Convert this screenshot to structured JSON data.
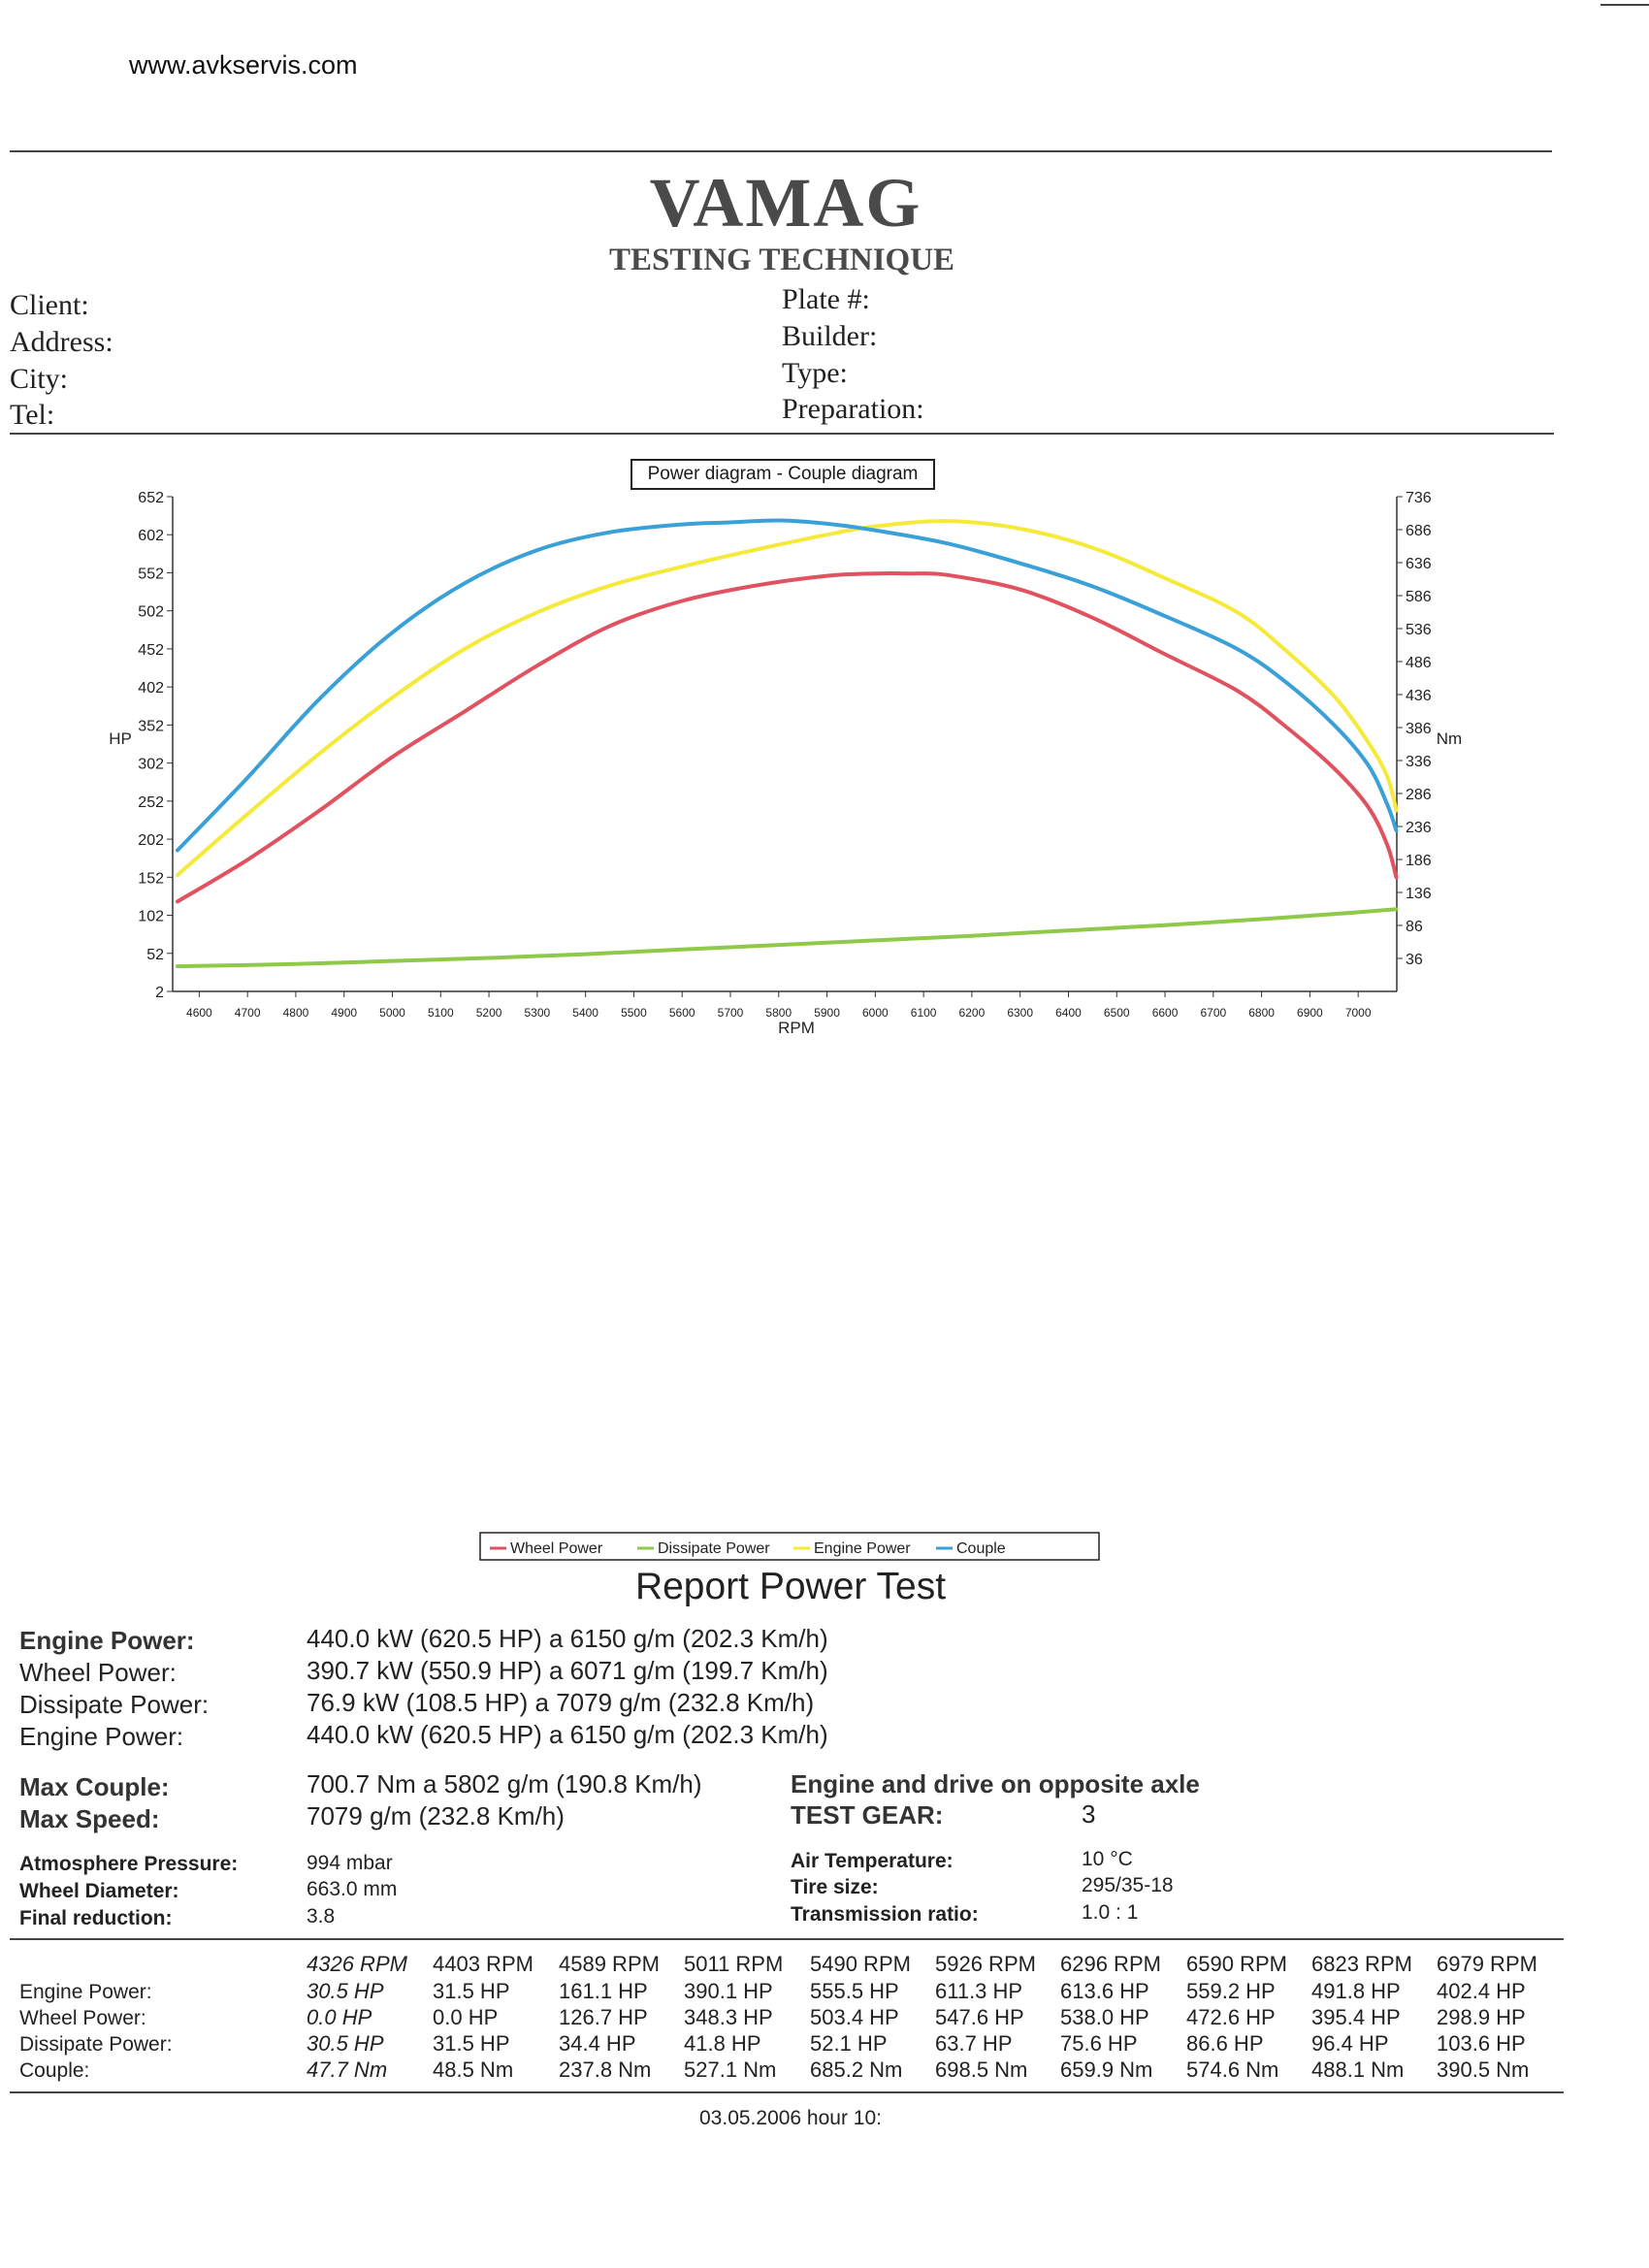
{
  "header": {
    "website": "www.avkservis.com",
    "brand": "VAMAG",
    "brand_subtitle": "TESTING TECHNIQUE"
  },
  "client_fields": {
    "client": "Client:",
    "address": "Address:",
    "city": "City:",
    "tel": "Tel:",
    "plate": "Plate #:",
    "builder": "Builder:",
    "type": "Type:",
    "preparation": "Preparation:"
  },
  "chart_data": {
    "type": "line",
    "title": "Power diagram - Couple diagram",
    "xlabel": "RPM",
    "ylabel_left": "HP",
    "ylabel_right": "Nm",
    "xlim": [
      4545,
      7080
    ],
    "ylim_left": [
      2,
      652
    ],
    "ylim_right": [
      -14,
      736
    ],
    "x_ticks": [
      4600,
      4700,
      4800,
      4900,
      5000,
      5100,
      5200,
      5300,
      5400,
      5500,
      5600,
      5700,
      5800,
      5900,
      6000,
      6100,
      6200,
      6300,
      6400,
      6500,
      6600,
      6700,
      6800,
      6900,
      7000
    ],
    "y_ticks_left": [
      2,
      52,
      102,
      152,
      202,
      252,
      302,
      352,
      402,
      452,
      502,
      552,
      602,
      652
    ],
    "y_ticks_right": [
      36,
      86,
      136,
      186,
      236,
      286,
      336,
      386,
      436,
      486,
      536,
      586,
      636,
      686,
      736
    ],
    "grid": false,
    "legend_position": "bottom",
    "series": [
      {
        "name": "Wheel Power",
        "color": "#e0525f",
        "axis": "left",
        "x": [
          4555,
          4700,
          4850,
          5000,
          5150,
          5300,
          5450,
          5600,
          5750,
          5900,
          6000,
          6071,
          6150,
          6300,
          6450,
          6600,
          6750,
          6850,
          6950,
          7020,
          7060,
          7079
        ],
        "y": [
          120,
          175,
          240,
          310,
          370,
          430,
          482,
          515,
          535,
          548,
          551,
          551,
          549,
          530,
          493,
          445,
          397,
          350,
          295,
          245,
          195,
          152
        ]
      },
      {
        "name": "Dissipate Power",
        "color": "#8fc94a",
        "axis": "left",
        "x": [
          4555,
          4800,
          5000,
          5200,
          5400,
          5600,
          5800,
          6000,
          6200,
          6400,
          6600,
          6800,
          7000,
          7079
        ],
        "y": [
          35,
          38,
          42,
          46,
          51,
          57,
          63,
          69,
          75,
          82,
          89,
          97,
          106,
          110
        ]
      },
      {
        "name": "Engine Power",
        "color": "#f5ea3a",
        "axis": "left",
        "x": [
          4555,
          4700,
          4850,
          5000,
          5150,
          5300,
          5450,
          5600,
          5750,
          5900,
          6000,
          6150,
          6300,
          6450,
          6600,
          6750,
          6850,
          6950,
          7020,
          7060,
          7079
        ],
        "y": [
          155,
          235,
          315,
          388,
          452,
          500,
          535,
          560,
          582,
          602,
          613,
          620,
          610,
          585,
          545,
          500,
          450,
          390,
          330,
          285,
          240
        ]
      },
      {
        "name": "Couple",
        "color": "#3aa0d8",
        "axis": "right",
        "x": [
          4555,
          4700,
          4850,
          5000,
          5150,
          5300,
          5450,
          5600,
          5700,
          5802,
          5900,
          6000,
          6150,
          6300,
          6450,
          6600,
          6750,
          6850,
          6950,
          7020,
          7060,
          7079
        ],
        "y": [
          200,
          310,
          430,
          530,
          605,
          655,
          682,
          694,
          697,
          700,
          695,
          685,
          665,
          635,
          600,
          555,
          505,
          455,
          390,
          330,
          270,
          230
        ]
      }
    ]
  },
  "report": {
    "title": "Report Power Test",
    "summary": [
      {
        "label": "Engine Power:",
        "value": "440.0 kW (620.5 HP) a 6150 g/m (202.3 Km/h)"
      },
      {
        "label": "Wheel Power:",
        "value": "390.7 kW (550.9 HP) a 6071 g/m (199.7 Km/h)"
      },
      {
        "label": "Dissipate Power:",
        "value": "76.9 kW (108.5 HP) a 7079 g/m (232.8 Km/h)"
      },
      {
        "label": "Engine Power:",
        "value": "440.0 kW (620.5 HP) a 6150 g/m (202.3 Km/h)"
      }
    ],
    "max_couple_label": "Max Couple:",
    "max_couple_value": "700.7 Nm a 5802 g/m (190.8 Km/h)",
    "max_speed_label": "Max Speed:",
    "max_speed_value": "7079 g/m (232.8 Km/h)",
    "drive_note": "Engine and drive on opposite axle",
    "test_gear_label": "TEST GEAR:",
    "test_gear_value": "3",
    "atmosphere_label": "Atmosphere Pressure:",
    "atmosphere_value": "994 mbar",
    "wheel_diameter_label": "Wheel Diameter:",
    "wheel_diameter_value": "663.0 mm",
    "final_reduction_label": "Final reduction:",
    "final_reduction_value": "3.8",
    "air_temp_label": "Air Temperature:",
    "air_temp_value": "10 °C",
    "tire_size_label": "Tire size:",
    "tire_size_value": "295/35-18",
    "transmission_label": "Transmission ratio:",
    "transmission_value": "1.0 : 1"
  },
  "table": {
    "row_labels": [
      "Engine Power:",
      "Wheel Power:",
      "Dissipate Power:",
      "Couple:"
    ],
    "columns": [
      {
        "rpm": "4326 RPM",
        "engine": "30.5 HP",
        "wheel": "0.0 HP",
        "dissipate": "30.5 HP",
        "couple": "47.7 Nm"
      },
      {
        "rpm": "4403 RPM",
        "engine": "31.5 HP",
        "wheel": "0.0 HP",
        "dissipate": "31.5 HP",
        "couple": "48.5 Nm"
      },
      {
        "rpm": "4589 RPM",
        "engine": "161.1 HP",
        "wheel": "126.7 HP",
        "dissipate": "34.4 HP",
        "couple": "237.8 Nm"
      },
      {
        "rpm": "5011 RPM",
        "engine": "390.1 HP",
        "wheel": "348.3 HP",
        "dissipate": "41.8 HP",
        "couple": "527.1 Nm"
      },
      {
        "rpm": "5490 RPM",
        "engine": "555.5 HP",
        "wheel": "503.4 HP",
        "dissipate": "52.1 HP",
        "couple": "685.2 Nm"
      },
      {
        "rpm": "5926 RPM",
        "engine": "611.3 HP",
        "wheel": "547.6 HP",
        "dissipate": "63.7 HP",
        "couple": "698.5 Nm"
      },
      {
        "rpm": "6296 RPM",
        "engine": "613.6 HP",
        "wheel": "538.0 HP",
        "dissipate": "75.6 HP",
        "couple": "659.9 Nm"
      },
      {
        "rpm": "6590 RPM",
        "engine": "559.2 HP",
        "wheel": "472.6 HP",
        "dissipate": "86.6 HP",
        "couple": "574.6 Nm"
      },
      {
        "rpm": "6823 RPM",
        "engine": "491.8 HP",
        "wheel": "395.4 HP",
        "dissipate": "96.4 HP",
        "couple": "488.1 Nm"
      },
      {
        "rpm": "6979 RPM",
        "engine": "402.4 HP",
        "wheel": "298.9 HP",
        "dissipate": "103.6 HP",
        "couple": "390.5 Nm"
      }
    ]
  },
  "footer": {
    "date": "03.05.2006 hour 10:"
  }
}
